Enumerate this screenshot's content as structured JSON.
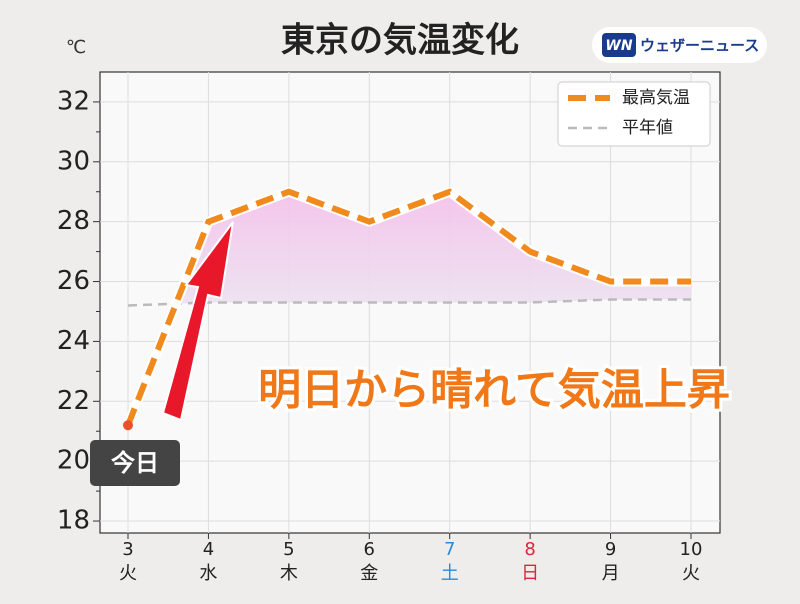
{
  "chart_data": {
    "type": "line",
    "title": "東京の気温変化",
    "unit": "℃",
    "brand": {
      "mark": "WN",
      "name": "ウェザーニュース"
    },
    "categories": [
      "3",
      "4",
      "5",
      "6",
      "7",
      "8",
      "9",
      "10"
    ],
    "weekdays": [
      "火",
      "水",
      "木",
      "金",
      "土",
      "日",
      "月",
      "火"
    ],
    "weekday_colors": [
      "#222222",
      "#222222",
      "#222222",
      "#222222",
      "#2a8ad8",
      "#d8283a",
      "#222222",
      "#222222"
    ],
    "series": [
      {
        "name": "最高気温",
        "color": "#f08a1c",
        "values": [
          21.2,
          28,
          29,
          28,
          29,
          27,
          26,
          26
        ]
      },
      {
        "name": "平年値",
        "color": "#bbbbbb",
        "values": [
          25.2,
          25.3,
          25.3,
          25.3,
          25.3,
          25.3,
          25.4,
          25.4
        ]
      }
    ],
    "ylim": [
      17.6,
      33
    ],
    "yticks": [
      18,
      20,
      22,
      24,
      26,
      28,
      30,
      32
    ],
    "y_minor_ticks": [
      19,
      21,
      23,
      25,
      27,
      29,
      31
    ],
    "grid": true,
    "legend": "upper right",
    "annotations": {
      "today": "今日",
      "headline": "明日から晴れて気温上昇"
    }
  }
}
